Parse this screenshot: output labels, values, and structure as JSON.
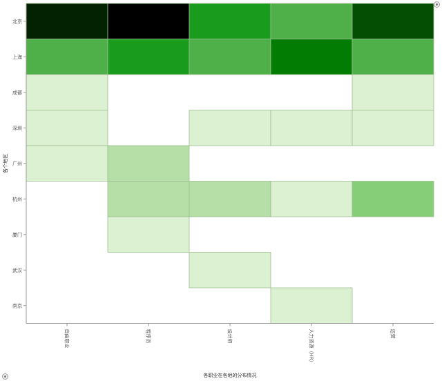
{
  "chart_data": {
    "type": "heatmap",
    "title": "",
    "xlabel": "各职业在各地的分布情况",
    "ylabel": "各个地区",
    "x_categories": [
      "自由职业",
      "程序员",
      "设计师",
      "人力资源（HR）",
      "运营"
    ],
    "y_categories": [
      "北京",
      "上海",
      "成都",
      "深圳",
      "广州",
      "杭州",
      "厦门",
      "武汉",
      "南京"
    ],
    "cells": [
      {
        "y": "北京",
        "x": "自由职业",
        "value": 0.92
      },
      {
        "y": "北京",
        "x": "程序员",
        "value": 1.0
      },
      {
        "y": "北京",
        "x": "设计师",
        "value": 0.6
      },
      {
        "y": "北京",
        "x": "人力资源（HR）",
        "value": 0.48
      },
      {
        "y": "北京",
        "x": "运营",
        "value": 0.82
      },
      {
        "y": "上海",
        "x": "自由职业",
        "value": 0.48
      },
      {
        "y": "上海",
        "x": "程序员",
        "value": 0.6
      },
      {
        "y": "上海",
        "x": "设计师",
        "value": 0.48
      },
      {
        "y": "上海",
        "x": "人力资源（HR）",
        "value": 0.7
      },
      {
        "y": "上海",
        "x": "运营",
        "value": 0.48
      },
      {
        "y": "成都",
        "x": "自由职业",
        "value": 0.1
      },
      {
        "y": "成都",
        "x": "运营",
        "value": 0.1
      },
      {
        "y": "深圳",
        "x": "自由职业",
        "value": 0.1
      },
      {
        "y": "深圳",
        "x": "设计师",
        "value": 0.1
      },
      {
        "y": "深圳",
        "x": "人力资源（HR）",
        "value": 0.1
      },
      {
        "y": "深圳",
        "x": "运营",
        "value": 0.1
      },
      {
        "y": "广州",
        "x": "自由职业",
        "value": 0.1
      },
      {
        "y": "广州",
        "x": "程序员",
        "value": 0.22
      },
      {
        "y": "杭州",
        "x": "程序员",
        "value": 0.22
      },
      {
        "y": "杭州",
        "x": "设计师",
        "value": 0.22
      },
      {
        "y": "杭州",
        "x": "人力资源（HR）",
        "value": 0.1
      },
      {
        "y": "杭州",
        "x": "运营",
        "value": 0.34
      },
      {
        "y": "厦门",
        "x": "程序员",
        "value": 0.1
      },
      {
        "y": "武汉",
        "x": "设计师",
        "value": 0.1
      },
      {
        "y": "南京",
        "x": "人力资源（HR）",
        "value": 0.1
      }
    ],
    "color_scale": {
      "stops": [
        {
          "value": 0.1,
          "color": "#dcf0d2"
        },
        {
          "value": 0.22,
          "color": "#b5dfa6"
        },
        {
          "value": 0.34,
          "color": "#86cf78"
        },
        {
          "value": 0.48,
          "color": "#4fb04a"
        },
        {
          "value": 0.6,
          "color": "#199c1d"
        },
        {
          "value": 0.7,
          "color": "#037c04"
        },
        {
          "value": 0.82,
          "color": "#034e03"
        },
        {
          "value": 0.92,
          "color": "#022202"
        },
        {
          "value": 1.0,
          "color": "#000000"
        }
      ]
    },
    "grid": false,
    "legend": "none"
  },
  "colors": {
    "axis": "#9a9a9a",
    "cell_border": "#9fbf92"
  }
}
